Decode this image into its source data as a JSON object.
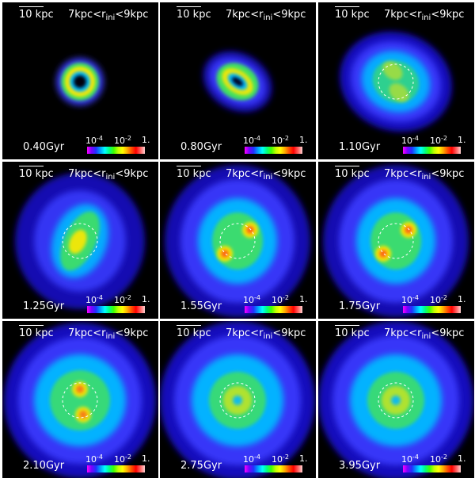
{
  "colors": {
    "background": "#000000",
    "separator": "#ffffff",
    "ring_dashed": "#ffffff",
    "halo_outer": "#1a10d0",
    "halo_mid": "#3a3cff",
    "disk_cyan": "#00b8ff",
    "disk_green": "#40e060",
    "disk_yellow": "#ffe800",
    "disk_red": "#ff3020"
  },
  "panels": [
    {
      "scale": "10 kpc",
      "range_prefix": "7kpc<r",
      "range_sub": "ini",
      "range_suffix": "<9kpc",
      "time": "0.40Gyr",
      "cbar": {
        "t1": "10",
        "e1": "-4",
        "t2": "10",
        "e2": "-2",
        "t3": "1."
      },
      "morph": "ring"
    },
    {
      "scale": "10 kpc",
      "range_prefix": "7kpc<r",
      "range_sub": "ini",
      "range_suffix": "<9kpc",
      "time": "0.80Gyr",
      "cbar": {
        "t1": "10",
        "e1": "-4",
        "t2": "10",
        "e2": "-2",
        "t3": "1."
      },
      "morph": "tilted-ring"
    },
    {
      "scale": "10 kpc",
      "range_prefix": "7kpc<r",
      "range_sub": "ini",
      "range_suffix": "<9kpc",
      "time": "1.10Gyr",
      "cbar": {
        "t1": "10",
        "e1": "-4",
        "t2": "10",
        "e2": "-2",
        "t3": "1."
      },
      "morph": "spreading"
    },
    {
      "scale": "10 kpc",
      "range_prefix": "7kpc<r",
      "range_sub": "ini",
      "range_suffix": "<9kpc",
      "time": "1.25Gyr",
      "cbar": {
        "t1": "10",
        "e1": "-4",
        "t2": "10",
        "e2": "-2",
        "t3": "1."
      },
      "morph": "spiral"
    },
    {
      "scale": "10 kpc",
      "range_prefix": "7kpc<r",
      "range_sub": "ini",
      "range_suffix": "<9kpc",
      "time": "1.55Gyr",
      "cbar": {
        "t1": "10",
        "e1": "-4",
        "t2": "10",
        "e2": "-2",
        "t3": "1."
      },
      "morph": "bar"
    },
    {
      "scale": "10 kpc",
      "range_prefix": "7kpc<r",
      "range_sub": "ini",
      "range_suffix": "<9kpc",
      "time": "1.75Gyr",
      "cbar": {
        "t1": "10",
        "e1": "-4",
        "t2": "10",
        "e2": "-2",
        "t3": "1."
      },
      "morph": "bar"
    },
    {
      "scale": "10 kpc",
      "range_prefix": "7kpc<r",
      "range_sub": "ini",
      "range_suffix": "<9kpc",
      "time": "2.10Gyr",
      "cbar": {
        "t1": "10",
        "e1": "-4",
        "t2": "10",
        "e2": "-2",
        "t3": "1."
      },
      "morph": "diffuse-bar"
    },
    {
      "scale": "10 kpc",
      "range_prefix": "7kpc<r",
      "range_sub": "ini",
      "range_suffix": "<9kpc",
      "time": "2.75Gyr",
      "cbar": {
        "t1": "10",
        "e1": "-4",
        "t2": "10",
        "e2": "-2",
        "t3": "1."
      },
      "morph": "diffuse"
    },
    {
      "scale": "10 kpc",
      "range_prefix": "7kpc<r",
      "range_sub": "ini",
      "range_suffix": "<9kpc",
      "time": "3.95Gyr",
      "cbar": {
        "t1": "10",
        "e1": "-4",
        "t2": "10",
        "e2": "-2",
        "t3": "1."
      },
      "morph": "relaxed"
    }
  ]
}
